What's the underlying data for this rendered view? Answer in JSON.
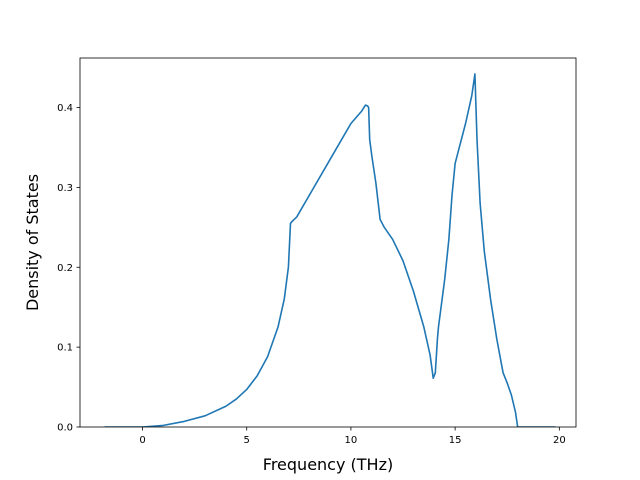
{
  "chart_data": {
    "type": "line",
    "title": "",
    "xlabel": "Frequency (THz)",
    "ylabel": "Density of States",
    "xlim": [
      -3.0,
      20.8
    ],
    "ylim": [
      0.0,
      0.462
    ],
    "xticks": [
      0,
      5,
      10,
      15,
      20
    ],
    "yticks": [
      0.0,
      0.1,
      0.2,
      0.3,
      0.4
    ],
    "xtick_labels": [
      "0",
      "5",
      "10",
      "15",
      "20"
    ],
    "ytick_labels": [
      "0.0",
      "0.1",
      "0.2",
      "0.3",
      "0.4"
    ],
    "grid": false,
    "legend": "none",
    "line_color": "#1f77b4",
    "series": [
      {
        "x": [
          -1.8,
          0.0,
          1.0,
          2.0,
          3.0,
          4.0,
          4.5,
          5.0,
          5.5,
          6.0,
          6.5,
          6.8,
          7.0,
          7.1,
          7.2,
          7.4,
          8.0,
          9.0,
          10.0,
          10.5,
          10.7,
          10.8,
          10.85,
          10.9,
          11.0,
          11.2,
          11.4,
          11.6,
          12.0,
          12.5,
          13.0,
          13.5,
          13.8,
          13.95,
          14.05,
          14.15,
          14.2,
          14.3,
          14.5,
          14.7,
          14.85,
          15.0,
          15.2,
          15.5,
          15.8,
          15.95,
          16.05,
          16.2,
          16.4,
          16.7,
          17.0,
          17.3,
          17.5,
          17.7,
          17.9,
          18.0,
          18.1,
          19.0,
          19.8
        ],
        "y": [
          0.0,
          0.0,
          0.002,
          0.007,
          0.014,
          0.026,
          0.035,
          0.047,
          0.064,
          0.088,
          0.125,
          0.16,
          0.2,
          0.255,
          0.258,
          0.263,
          0.29,
          0.335,
          0.38,
          0.395,
          0.403,
          0.402,
          0.4,
          0.36,
          0.34,
          0.305,
          0.26,
          0.25,
          0.235,
          0.208,
          0.17,
          0.125,
          0.09,
          0.061,
          0.068,
          0.11,
          0.125,
          0.145,
          0.185,
          0.235,
          0.29,
          0.33,
          0.35,
          0.38,
          0.415,
          0.442,
          0.36,
          0.28,
          0.22,
          0.16,
          0.11,
          0.068,
          0.055,
          0.04,
          0.018,
          0.0,
          0.0,
          0.0,
          0.0
        ]
      }
    ]
  }
}
